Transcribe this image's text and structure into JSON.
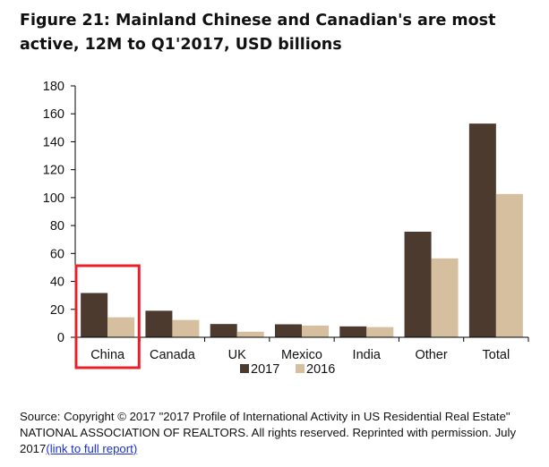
{
  "title": "Figure 21: Mainland Chinese and Canadian's are most active, 12M to Q1'2017, USD billions",
  "source": {
    "text": "Source:  Copyright © 2017 \"2017 Profile of International Activity in US Residential Real Estate\" NATIONAL ASSOCIATION OF REALTORS. All rights reserved. Reprinted with permission. July 2017",
    "link_text": "(link to full report)"
  },
  "colors": {
    "series_2017": "#4d3a2f",
    "series_2016": "#d5bf9f",
    "highlight": "#e8202a",
    "axis": "#000000"
  },
  "chart_data": {
    "type": "bar",
    "categories": [
      "China",
      "Canada",
      "UK",
      "Mexico",
      "India",
      "Other",
      "Total"
    ],
    "series": [
      {
        "name": "2017",
        "values": [
          31.7,
          19.0,
          9.5,
          9.3,
          7.8,
          75.6,
          153.0
        ]
      },
      {
        "name": "2016",
        "values": [
          14.3,
          12.4,
          4.0,
          8.4,
          7.3,
          56.5,
          102.6
        ]
      }
    ],
    "ylim": [
      0,
      180
    ],
    "yticks": [
      0,
      20,
      40,
      60,
      80,
      100,
      120,
      140,
      160,
      180
    ],
    "legend_position": "bottom-center",
    "grid": false,
    "highlighted_category": "China"
  }
}
